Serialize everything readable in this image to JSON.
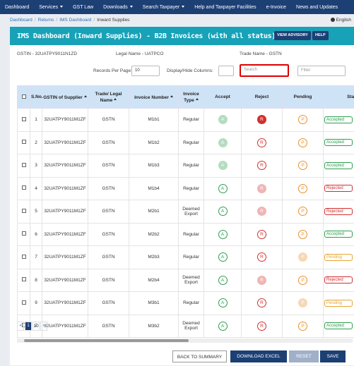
{
  "nav": [
    {
      "label": "Dashboard",
      "menu": false
    },
    {
      "label": "Services",
      "menu": true
    },
    {
      "label": "GST Law",
      "menu": false
    },
    {
      "label": "Downloads",
      "menu": true
    },
    {
      "label": "Search Taxpayer",
      "menu": true
    },
    {
      "label": "Help and Taxpayer Facilities",
      "menu": false
    },
    {
      "label": "e-Invoice",
      "menu": false
    },
    {
      "label": "News and Updates",
      "menu": false
    }
  ],
  "breadcrumb": [
    "Dashboard",
    "Returns",
    "IMS Dashboard",
    "Inward Supplies"
  ],
  "language": "English",
  "header": {
    "title": "IMS Dashboard (Inward Supplies) - B2B Invoices (with all status)",
    "advisory": "VIEW ADVISORY",
    "help": "HELP"
  },
  "info": {
    "gstin": "GSTIN - 32UATPY9011N1ZD",
    "legal": "Legal Name - UATPCO",
    "trade": "Trade Name - GSTN"
  },
  "controls": {
    "records_label": "Records Per Page:",
    "records_value": "10",
    "columns_label": "Display/Hide Columns:",
    "search": "Search",
    "filter": "Filter"
  },
  "table": {
    "columns": [
      "S.No.",
      "GSTIN of Supplier",
      "Trade/ Legal Name",
      "Invoice Number",
      "Invoice Type",
      "Accept",
      "Reject",
      "Pending",
      "Status"
    ],
    "rows": [
      {
        "sno": "1",
        "gstin": "32UATPY9011M1ZF",
        "name": "GSTN",
        "invoice": "M1b1",
        "type": "Regular",
        "accept": {
          "label": "A",
          "state": "faded"
        },
        "reject": {
          "label": "R",
          "state": "filled"
        },
        "pending": {
          "label": "P",
          "state": "outline"
        },
        "status": "Accepted"
      },
      {
        "sno": "2",
        "gstin": "32UATPY9011M1ZF",
        "name": "GSTN",
        "invoice": "M1b2",
        "type": "Regular",
        "accept": {
          "label": "A",
          "state": "faded"
        },
        "reject": {
          "label": "R",
          "state": "outline"
        },
        "pending": {
          "label": "P",
          "state": "outline"
        },
        "status": "Accepted"
      },
      {
        "sno": "3",
        "gstin": "32UATPY9011M1ZF",
        "name": "GSTN",
        "invoice": "M1b3",
        "type": "Regular",
        "accept": {
          "label": "A",
          "state": "faded"
        },
        "reject": {
          "label": "R",
          "state": "outline"
        },
        "pending": {
          "label": "P",
          "state": "outline"
        },
        "status": "Accepted"
      },
      {
        "sno": "4",
        "gstin": "32UATPY9011M1ZF",
        "name": "GSTN",
        "invoice": "M1b4",
        "type": "Regular",
        "accept": {
          "label": "A",
          "state": "outline"
        },
        "reject": {
          "label": "R",
          "state": "faded"
        },
        "pending": {
          "label": "P",
          "state": "outline"
        },
        "status": "Rejected"
      },
      {
        "sno": "5",
        "gstin": "32UATPY9011M1ZF",
        "name": "GSTN",
        "invoice": "M2b1",
        "type": "Deemed Export",
        "accept": {
          "label": "A",
          "state": "outline"
        },
        "reject": {
          "label": "R",
          "state": "faded"
        },
        "pending": {
          "label": "P",
          "state": "outline"
        },
        "status": "Rejected"
      },
      {
        "sno": "6",
        "gstin": "32UATPY9011M1ZF",
        "name": "GSTN",
        "invoice": "M2b2",
        "type": "Regular",
        "accept": {
          "label": "A",
          "state": "outline"
        },
        "reject": {
          "label": "R",
          "state": "outline"
        },
        "pending": {
          "label": "P",
          "state": "outline"
        },
        "status": "Accepted"
      },
      {
        "sno": "7",
        "gstin": "32UATPY9011M1ZF",
        "name": "GSTN",
        "invoice": "M2b3",
        "type": "Regular",
        "accept": {
          "label": "A",
          "state": "outline"
        },
        "reject": {
          "label": "R",
          "state": "outline"
        },
        "pending": {
          "label": "P",
          "state": "faded"
        },
        "status": "Pending"
      },
      {
        "sno": "8",
        "gstin": "32UATPY9011M1ZF",
        "name": "GSTN",
        "invoice": "M2b4",
        "type": "Deemed Export",
        "accept": {
          "label": "A",
          "state": "outline"
        },
        "reject": {
          "label": "R",
          "state": "faded"
        },
        "pending": {
          "label": "P",
          "state": "outline"
        },
        "status": "Rejected"
      },
      {
        "sno": "9",
        "gstin": "32UATPY9011M1ZF",
        "name": "GSTN",
        "invoice": "M3b1",
        "type": "Regular",
        "accept": {
          "label": "A",
          "state": "outline"
        },
        "reject": {
          "label": "R",
          "state": "outline"
        },
        "pending": {
          "label": "P",
          "state": "faded"
        },
        "status": "Pending"
      },
      {
        "sno": "10",
        "gstin": "32UATPY9011M1ZF",
        "name": "GSTN",
        "invoice": "M3b2",
        "type": "Deemed Export",
        "accept": {
          "label": "A",
          "state": "outline"
        },
        "reject": {
          "label": "R",
          "state": "outline"
        },
        "pending": {
          "label": "P",
          "state": "outline"
        },
        "status": "Accepted"
      }
    ]
  },
  "pagination": [
    "«",
    "1",
    "2",
    "»"
  ],
  "buttons": [
    "BACK TO SUMMARY",
    "DOWNLOAD EXCEL",
    "RESET",
    "SAVE"
  ]
}
